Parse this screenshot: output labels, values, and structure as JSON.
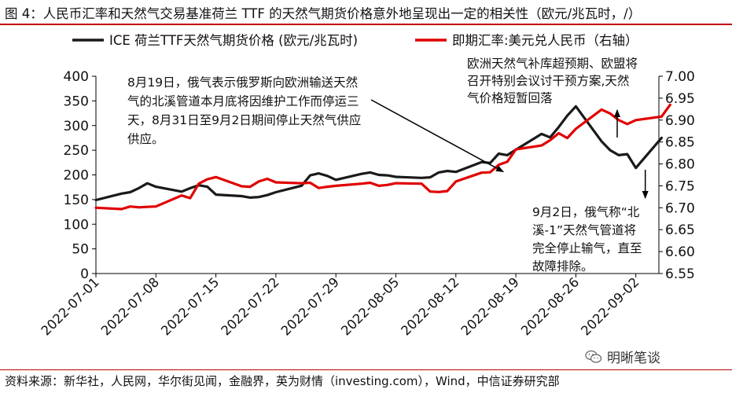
{
  "figure": {
    "title": "图 4：人民币汇率和天然气交易基准荷兰 TTF 的天然气期货价格意外地呈现出一定的相关性（欧元/兆瓦时，/）",
    "source": "资料来源：新华社，人民网，华尔街见闻，金融界，英为财情（investing.com），Wind，中信证券研究部",
    "watermark": "明晰笔谈",
    "watermark_icon": "wechat-icon"
  },
  "chart_data": {
    "type": "line",
    "xlabel": "",
    "ylabel": "",
    "y2label": "",
    "x_ticks": [
      "2022-07-01",
      "2022-07-08",
      "2022-07-15",
      "2022-07-22",
      "2022-07-29",
      "2022-08-05",
      "2022-08-12",
      "2022-08-19",
      "2022-08-26",
      "2022-09-02"
    ],
    "x_range": [
      "2022-07-01",
      "2022-09-06"
    ],
    "ylim": [
      0,
      400
    ],
    "y_ticks": [
      0,
      50,
      100,
      150,
      200,
      250,
      300,
      350,
      400
    ],
    "y2lim": [
      6.55,
      7.0
    ],
    "y2_ticks": [
      "6.55",
      "6.60",
      "6.65",
      "6.70",
      "6.75",
      "6.80",
      "6.85",
      "6.90",
      "6.95",
      "7.00"
    ],
    "grid": false,
    "legend_position": "top",
    "series": [
      {
        "name": "ICE 荷兰TTF天然气期货价格 (欧元/兆瓦时)",
        "axis": "left",
        "color": "#1a1a1a",
        "x": [
          "2022-07-01",
          "2022-07-04",
          "2022-07-05",
          "2022-07-06",
          "2022-07-07",
          "2022-07-08",
          "2022-07-11",
          "2022-07-12",
          "2022-07-13",
          "2022-07-14",
          "2022-07-15",
          "2022-07-18",
          "2022-07-19",
          "2022-07-20",
          "2022-07-21",
          "2022-07-22",
          "2022-07-25",
          "2022-07-26",
          "2022-07-27",
          "2022-07-28",
          "2022-07-29",
          "2022-08-01",
          "2022-08-02",
          "2022-08-03",
          "2022-08-04",
          "2022-08-05",
          "2022-08-08",
          "2022-08-09",
          "2022-08-10",
          "2022-08-11",
          "2022-08-12",
          "2022-08-15",
          "2022-08-16",
          "2022-08-17",
          "2022-08-18",
          "2022-08-19",
          "2022-08-22",
          "2022-08-23",
          "2022-08-24",
          "2022-08-25",
          "2022-08-26",
          "2022-08-29",
          "2022-08-30",
          "2022-08-31",
          "2022-09-01",
          "2022-09-02",
          "2022-09-05"
        ],
        "values": [
          149,
          162,
          165,
          173,
          183,
          176,
          166,
          173,
          179,
          176,
          160,
          157,
          154,
          155,
          159,
          165,
          178,
          199,
          203,
          198,
          190,
          202,
          205,
          200,
          199,
          196,
          194,
          195,
          205,
          208,
          206,
          226,
          224,
          243,
          240,
          251,
          283,
          276,
          297,
          320,
          339,
          268,
          250,
          240,
          242,
          214,
          275
        ]
      },
      {
        "name": "即期汇率:美元兑人民币（右轴）",
        "axis": "right",
        "color": "#e00000",
        "x": [
          "2022-07-01",
          "2022-07-04",
          "2022-07-05",
          "2022-07-06",
          "2022-07-07",
          "2022-07-08",
          "2022-07-11",
          "2022-07-12",
          "2022-07-13",
          "2022-07-14",
          "2022-07-15",
          "2022-07-18",
          "2022-07-19",
          "2022-07-20",
          "2022-07-21",
          "2022-07-22",
          "2022-07-25",
          "2022-07-26",
          "2022-07-27",
          "2022-07-28",
          "2022-07-29",
          "2022-08-01",
          "2022-08-02",
          "2022-08-03",
          "2022-08-04",
          "2022-08-05",
          "2022-08-08",
          "2022-08-09",
          "2022-08-10",
          "2022-08-11",
          "2022-08-12",
          "2022-08-15",
          "2022-08-16",
          "2022-08-17",
          "2022-08-18",
          "2022-08-19",
          "2022-08-22",
          "2022-08-23",
          "2022-08-24",
          "2022-08-25",
          "2022-08-26",
          "2022-08-29",
          "2022-08-30",
          "2022-08-31",
          "2022-09-01",
          "2022-09-02",
          "2022-09-05",
          "2022-09-06"
        ],
        "values": [
          6.7,
          6.697,
          6.703,
          6.701,
          6.702,
          6.703,
          6.728,
          6.722,
          6.755,
          6.765,
          6.77,
          6.749,
          6.748,
          6.76,
          6.766,
          6.758,
          6.756,
          6.757,
          6.745,
          6.748,
          6.75,
          6.755,
          6.757,
          6.75,
          6.752,
          6.756,
          6.755,
          6.737,
          6.736,
          6.738,
          6.76,
          6.78,
          6.781,
          6.798,
          6.805,
          6.833,
          6.842,
          6.854,
          6.87,
          6.859,
          6.88,
          6.924,
          6.915,
          6.9,
          6.891,
          6.9,
          6.908,
          6.935
        ]
      }
    ],
    "annotations": [
      {
        "text_lines": [
          "8月19日，俄气表示俄罗斯向欧洲输送天然",
          "气的北溪管道本月底将因维护工作而停运三",
          "天，8月31日至9月2日期间停止天然气供应",
          "供应。"
        ],
        "target": "2022-08-19",
        "arrow_to_series": "即期汇率:美元兑人民币（右轴）",
        "arrow_to_value": 6.775
      },
      {
        "text_lines": [
          "欧洲天然气补库超预期、欧盟将",
          "召开特别会议讨干预方案,天然",
          "气价格短暂回落"
        ],
        "target": "2022-08-30",
        "arrow_direction": "up"
      },
      {
        "text_lines": [
          "9月2日，俄气称“北",
          "溪-1”天然气管道将",
          "完全停止输气，直至",
          "故障排除。"
        ],
        "target": "2022-09-02",
        "arrow_direction": "down"
      }
    ]
  }
}
